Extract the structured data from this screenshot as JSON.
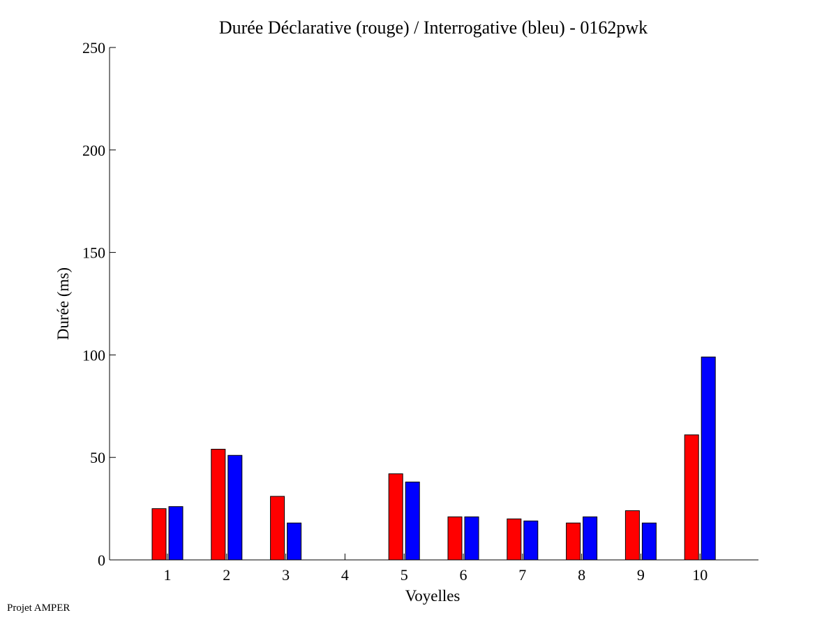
{
  "footer": {
    "text": "Projet AMPER"
  },
  "chart_data": {
    "type": "bar",
    "title": "Durée Déclarative (rouge) / Interrogative (bleu) - 0162pwk",
    "xlabel": "Voyelles",
    "ylabel": "Durée (ms)",
    "categories": [
      "1",
      "2",
      "3",
      "4",
      "5",
      "6",
      "7",
      "8",
      "9",
      "10"
    ],
    "ylim": [
      0,
      250
    ],
    "yticks": [
      0,
      50,
      100,
      150,
      200,
      250
    ],
    "grid": false,
    "series": [
      {
        "color": "#ff0000",
        "values": [
          25,
          54,
          31,
          0,
          42,
          21,
          20,
          18,
          24,
          61
        ]
      },
      {
        "color": "#0000ff",
        "values": [
          26,
          51,
          18,
          0,
          38,
          21,
          19,
          21,
          18,
          99
        ]
      }
    ]
  }
}
